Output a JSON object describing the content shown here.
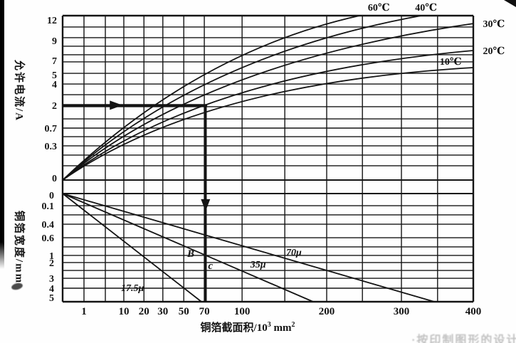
{
  "page": {
    "background": "#fefefe",
    "ink": "#141414"
  },
  "axes": {
    "top_y_title": "允许电流/A",
    "bottom_y_title": "铜箔宽度/mm",
    "x_title_base": "铜箔截面积/10",
    "x_title_sup": "3",
    "x_title_unit": " mm",
    "x_title_sup2": "2"
  },
  "watermark": {
    "text": "·按印制图形的设计"
  },
  "chart_data": [
    {
      "type": "line",
      "panel": "top",
      "title": "",
      "xlabel": "铜箔截面积/10³ mm²",
      "ylabel": "允许电流/A",
      "ylim": [
        0,
        12
      ],
      "xlim": [
        0,
        400
      ],
      "grid": true,
      "x_scale_note": "nonlinear scanned scale, fractions f give position across plot width",
      "x_ticks": [
        {
          "v": 1,
          "f": 0.052
        },
        {
          "v": 10,
          "f": 0.149
        },
        {
          "v": 20,
          "f": 0.198
        },
        {
          "v": 30,
          "f": 0.244
        },
        {
          "v": 50,
          "f": 0.295
        },
        {
          "v": 70,
          "f": 0.345
        },
        {
          "v": 100,
          "f": 0.437
        },
        {
          "v": 200,
          "f": 0.643
        },
        {
          "v": 300,
          "f": 0.825
        },
        {
          "v": 400,
          "f": 1.0
        }
      ],
      "x_grid_f": [
        0,
        0.052,
        0.104,
        0.149,
        0.198,
        0.244,
        0.295,
        0.345,
        0.437,
        0.541,
        0.643,
        0.73,
        0.825,
        0.913,
        1.0
      ],
      "y_ticks": [
        {
          "v": "12",
          "f": 0.026
        },
        {
          "v": "9",
          "f": 0.152
        },
        {
          "v": "7",
          "f": 0.273
        },
        {
          "v": "5",
          "f": 0.359
        },
        {
          "v": "4",
          "f": 0.416
        },
        {
          "v": "2",
          "f": 0.545
        },
        {
          "v": "0.7",
          "f": 0.684
        },
        {
          "v": "0.3",
          "f": 0.792
        },
        {
          "v": "0",
          "f": 0.987
        }
      ],
      "y_grid_f": [
        0,
        0.069,
        0.134,
        0.186,
        0.238,
        0.281,
        0.351,
        0.416,
        0.481,
        0.554,
        0.628,
        0.684,
        0.736,
        0.792,
        0.848,
        0.913,
        1.0
      ],
      "series": [
        {
          "id": "60c",
          "name": "60℃",
          "x": [
            0,
            70,
            245
          ],
          "y": [
            0,
            4.9,
            12
          ],
          "path_f": {
            "p0": [
              0,
              1
            ],
            "c": [
              0.328,
              0.219
            ],
            "p2": [
              0.723,
              0
            ]
          },
          "label_f": [
            0.77,
            -0.052
          ]
        },
        {
          "id": "40c",
          "name": "40℃",
          "x": [
            0,
            70,
            325
          ],
          "y": [
            0,
            3.9,
            12
          ],
          "path_f": {
            "p0": [
              0,
              1
            ],
            "c": [
              0.333,
              0.247
            ],
            "p2": [
              0.873,
              0
            ]
          },
          "label_f": [
            0.885,
            -0.052
          ]
        },
        {
          "id": "30c",
          "name": "30℃",
          "x": [
            0,
            70,
            400
          ],
          "y": [
            0,
            3.0,
            11
          ],
          "path_f": {
            "p0": [
              0,
              1
            ],
            "c": [
              0.339,
              0.29
            ],
            "p2": [
              1,
              0.048
            ]
          },
          "label_f": [
            1.05,
            0.048
          ]
        },
        {
          "id": "20c",
          "name": "20℃",
          "x": [
            0,
            70,
            400
          ],
          "y": [
            0,
            2.3,
            8
          ],
          "path_f": {
            "p0": [
              0,
              1
            ],
            "c": [
              0.339,
              0.359
            ],
            "p2": [
              1,
              0.212
            ]
          },
          "label_f": [
            1.05,
            0.212
          ]
        },
        {
          "id": "10c",
          "name": "10℃",
          "x": [
            0,
            70,
            400
          ],
          "y": [
            0,
            1.8,
            6.5
          ],
          "path_f": {
            "p0": [
              0,
              1
            ],
            "c": [
              0.339,
              0.411
            ],
            "p2": [
              1,
              0.316
            ]
          },
          "label_f": [
            0.945,
            0.277
          ]
        }
      ],
      "annotation": {
        "description": "worked example: 2 A allowed current at cross-section 70",
        "current_A": 2,
        "area": 70,
        "h_line": {
          "y_f": 0.545,
          "x0_f": 0.0,
          "x1_f": 0.352,
          "arrow_tip_f": 0.146
        },
        "v_line": {
          "x_f": 0.348,
          "arrow_tip_y_f": 0.164
        }
      }
    },
    {
      "type": "line",
      "panel": "bottom",
      "title": "",
      "xlabel": "铜箔截面积/10³ mm²",
      "ylabel": "铜箔宽度/mm",
      "ylim": [
        0,
        5
      ],
      "grid": true,
      "y_ticks": [
        {
          "v": "0",
          "f": 0.013
        },
        {
          "v": "0.1",
          "f": 0.112
        },
        {
          "v": "0.4",
          "f": 0.283
        },
        {
          "v": "0.6",
          "f": 0.408
        },
        {
          "v": "1",
          "f": 0.572
        },
        {
          "v": "2",
          "f": 0.638
        },
        {
          "v": "3",
          "f": 0.783
        },
        {
          "v": "4",
          "f": 0.875
        },
        {
          "v": "5",
          "f": 0.961
        }
      ],
      "y_grid_f": [
        0,
        0.112,
        0.197,
        0.283,
        0.408,
        0.493,
        0.572,
        0.638,
        0.711,
        0.783,
        0.875,
        1.0
      ],
      "series": [
        {
          "id": "17_5u",
          "name": "17.5μ",
          "x": [
            0,
            70
          ],
          "y": [
            0,
            5
          ],
          "line_f": {
            "p0": [
              0,
              0
            ],
            "p2": [
              0.338,
              1.0
            ]
          },
          "label_f": [
            0.17,
            0.868
          ]
        },
        {
          "id": "35u",
          "name": "35μ",
          "x": [
            0,
            185
          ],
          "y": [
            0,
            5
          ],
          "line_f": {
            "p0": [
              0,
              0
            ],
            "p2": [
              0.61,
              1.0
            ]
          },
          "label_f": [
            0.476,
            0.651
          ]
        },
        {
          "id": "70u",
          "name": "70μ",
          "x": [
            0,
            345
          ],
          "y": [
            0,
            5
          ],
          "line_f": {
            "p0": [
              0,
              0
            ],
            "p2": [
              0.905,
              1.0
            ]
          },
          "label_f": [
            0.563,
            0.539
          ]
        }
      ],
      "point_labels": [
        {
          "text": "B",
          "f": [
            0.312,
            0.553
          ]
        },
        {
          "text": "c",
          "f": [
            0.36,
            0.664
          ]
        }
      ]
    }
  ]
}
